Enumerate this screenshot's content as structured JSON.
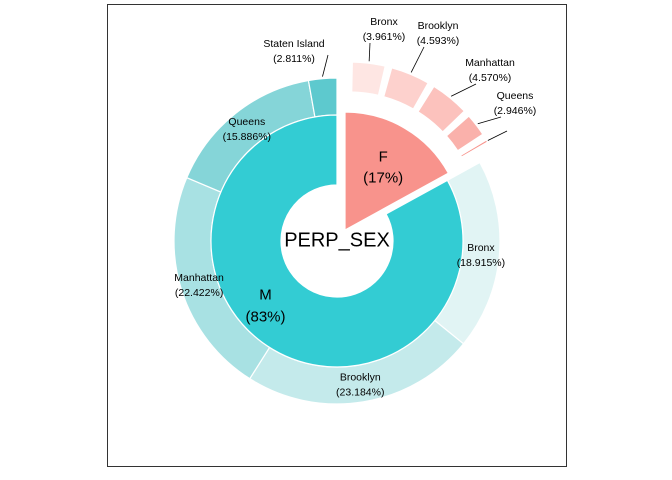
{
  "chart_data": {
    "type": "pie",
    "title": "",
    "center_label": "PERP_SEX",
    "inner_ring": [
      {
        "name": "M",
        "percent_text": "(83%)",
        "value": 83,
        "color": "#33CCD3"
      },
      {
        "name": "F",
        "percent_text": "(17%)",
        "value": 17,
        "color": "#F8938C"
      }
    ],
    "outer_ring": [
      {
        "group": "M",
        "name": "Bronx",
        "percent_text": "(18.915%)",
        "value": 18.915,
        "color": "#E1F4F4"
      },
      {
        "group": "M",
        "name": "Brooklyn",
        "percent_text": "(23.184%)",
        "value": 23.184,
        "color": "#C4EAEB"
      },
      {
        "group": "M",
        "name": "Manhattan",
        "percent_text": "(22.422%)",
        "value": 22.422,
        "color": "#A8E1E3"
      },
      {
        "group": "M",
        "name": "Queens",
        "percent_text": "(15.886%)",
        "value": 15.886,
        "color": "#85D5D8"
      },
      {
        "group": "M",
        "name": "Staten Island",
        "percent_text": "(2.811%)",
        "value": 2.811,
        "color": "#5DC9CE"
      },
      {
        "group": "F",
        "name": "Bronx",
        "percent_text": "(3.961%)",
        "value": 3.961,
        "color": "#FEE6E3"
      },
      {
        "group": "F",
        "name": "Brooklyn",
        "percent_text": "(4.593%)",
        "value": 4.593,
        "color": "#FDD1CD"
      },
      {
        "group": "F",
        "name": "Manhattan",
        "percent_text": "(4.570%)",
        "value": 4.57,
        "color": "#FCC2BD"
      },
      {
        "group": "F",
        "name": "Queens",
        "percent_text": "(2.946%)",
        "value": 2.946,
        "color": "#FAB1AB"
      },
      {
        "group": "F",
        "name": "",
        "percent_text": "",
        "value": 0.9,
        "color": "#F8938C"
      }
    ]
  }
}
